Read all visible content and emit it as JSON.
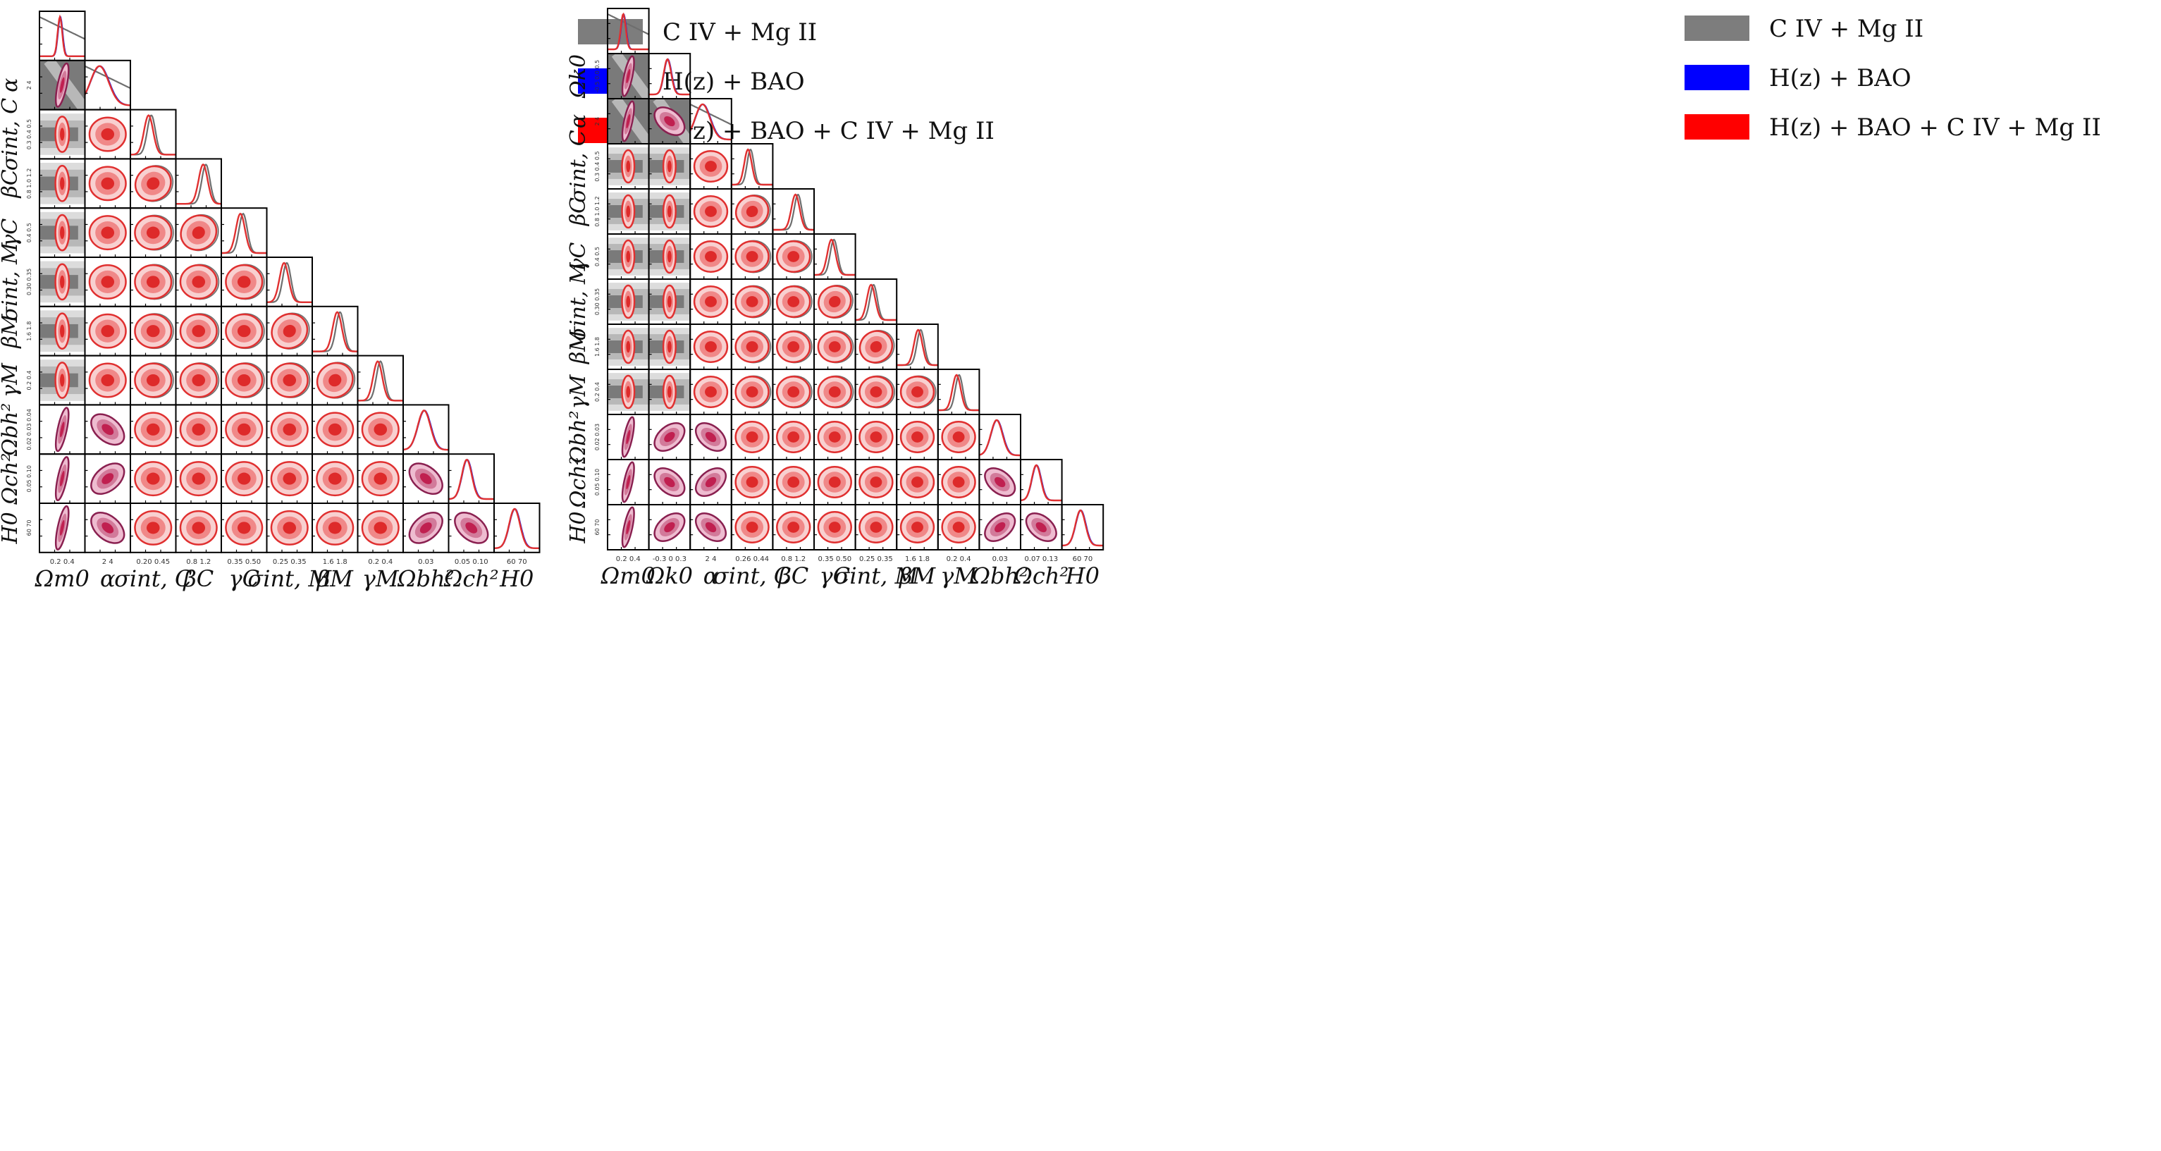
{
  "colors": {
    "gray_outer": "#dcdcdc",
    "gray_mid": "#b8b8b8",
    "gray_inner": "#7a7a7a",
    "gray_line": "#6e6e6e",
    "red_outer": "#f8d0d0",
    "red_mid": "#f08888",
    "red_inner": "#de2a2a",
    "red_line": "#e03030",
    "mag_outer": "#eebcd0",
    "mag_mid": "#d27a9a",
    "mag_inner": "#c02050",
    "mag_line": "#8a2050",
    "blue_line": "#2020e0",
    "legend_gray": "#7d7d7d",
    "legend_blue": "#0000ff",
    "legend_red": "#ff0000"
  },
  "chart_data": [
    {
      "type": "corner",
      "panel": "left",
      "parameters": [
        "Ω_m0",
        "α",
        "σ_int,C",
        "β_C",
        "γ_C",
        "σ_int,M",
        "β_M",
        "γ_M",
        "Ω_b h²",
        "Ω_c h²",
        "H_0"
      ],
      "axis_labels": [
        "Ωm0",
        "α",
        "σint, C",
        "βC",
        "γC",
        "σint, M",
        "βM",
        "γM",
        "Ωbh²",
        "Ωch²",
        "H0"
      ],
      "x_ticks": [
        "0.2 0.4",
        "2 4",
        "0.20 0.45",
        "0.8 1.2",
        "0.35 0.50",
        "0.25 0.35",
        "1.6 1.8",
        "0.2 0.4",
        "0.03",
        "0.05 0.10",
        "60 70"
      ],
      "y_ticks": [
        "",
        "2 4",
        "0.3 0.4 0.5",
        "0.8 1.0 1.2",
        "0.4 0.5",
        "0.30 0.35",
        "1.6 1.8",
        "0.2 0.4",
        "0.02 0.03 0.04",
        "0.05 0.10",
        "60 70"
      ],
      "legend": [
        "C IV + Mg II",
        "H(z) + BAO",
        "H(z) + BAO + C IV + Mg II"
      ],
      "diagonal_peaks": [
        0.45,
        0.32,
        0.4,
        0.6,
        0.42,
        0.38,
        0.55,
        0.44,
        0.46,
        0.4,
        0.45
      ],
      "diagonal_widths": [
        0.05,
        0.2,
        0.1,
        0.1,
        0.1,
        0.1,
        0.1,
        0.1,
        0.14,
        0.11,
        0.12
      ],
      "sample_groups": {
        "cosmology": [
          0,
          1,
          8,
          9,
          10
        ],
        "quasar": [
          2,
          3,
          4,
          5,
          6,
          7
        ]
      }
    },
    {
      "type": "corner",
      "panel": "right",
      "parameters": [
        "Ω_m0",
        "Ω_k0",
        "α",
        "σ_int,C",
        "β_C",
        "γ_C",
        "σ_int,M",
        "β_M",
        "γ_M",
        "Ω_b h²",
        "Ω_c h²",
        "H_0"
      ],
      "axis_labels": [
        "Ωm0",
        "Ωk0",
        "α",
        "σint, C",
        "βC",
        "γC",
        "σint, M",
        "βM",
        "γM",
        "Ωbh²",
        "Ωch²",
        "H0"
      ],
      "x_ticks": [
        "0.2 0.4",
        "-0.3 0 0.3",
        "2 4",
        "0.26 0.44",
        "0.8 1.2",
        "0.35 0.50",
        "0.25 0.35",
        "1.6 1.8",
        "0.2 0.4",
        "0.03",
        "0.07 0.13",
        "60 70"
      ],
      "y_ticks": [
        "",
        "-0.5 0.0 0.5",
        "2 4",
        "0.3 0.4 0.5",
        "0.8 1.0 1.2",
        "0.4 0.5",
        "0.30 0.35",
        "1.6 1.8",
        "0.2 0.4",
        "0.02 0.03",
        "0.05 0.10",
        "60 70"
      ],
      "legend": [
        "C IV + Mg II",
        "H(z) + BAO",
        "H(z) + BAO + C IV + Mg II"
      ],
      "diagonal_peaks": [
        0.38,
        0.45,
        0.3,
        0.4,
        0.55,
        0.42,
        0.38,
        0.52,
        0.45,
        0.42,
        0.38,
        0.45
      ],
      "diagonal_widths": [
        0.06,
        0.09,
        0.18,
        0.09,
        0.1,
        0.1,
        0.1,
        0.1,
        0.1,
        0.14,
        0.11,
        0.12
      ],
      "sample_groups": {
        "cosmology": [
          0,
          1,
          2,
          9,
          10,
          11
        ],
        "quasar": [
          3,
          4,
          5,
          6,
          7,
          8
        ]
      }
    }
  ]
}
